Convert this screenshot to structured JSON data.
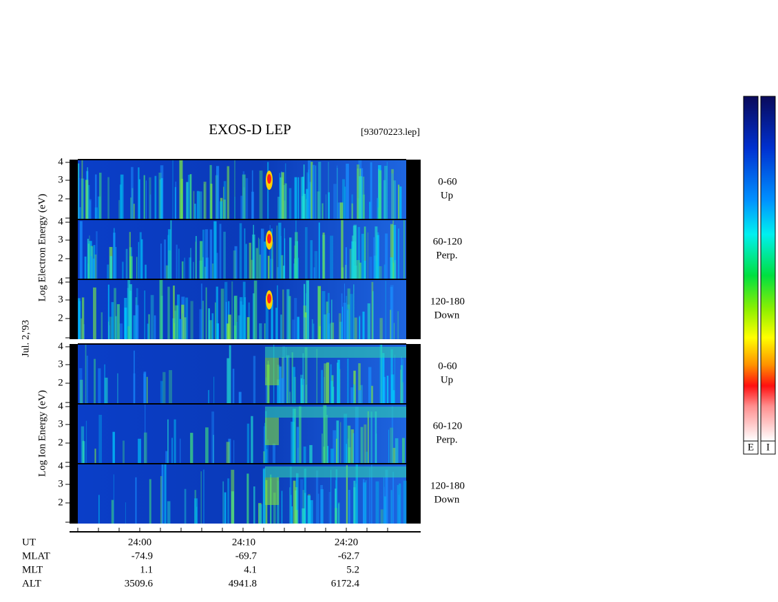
{
  "header": {
    "title": "EXOS-D LEP",
    "file": "[93070223.lep]"
  },
  "date": "Jul. 2,'93",
  "electron": {
    "y_label": "Log Electron Energy (eV)",
    "panels": [
      {
        "angle": "0-60",
        "direction": "Up",
        "ticks": [
          "4",
          "3",
          "2"
        ]
      },
      {
        "angle": "60-120",
        "direction": "Perp.",
        "ticks": [
          "4",
          "3",
          "2"
        ]
      },
      {
        "angle": "120-180",
        "direction": "Down",
        "ticks": [
          "4",
          "3",
          "2"
        ]
      }
    ]
  },
  "ion": {
    "y_label": "Log Ion Energy (eV)",
    "panels": [
      {
        "angle": "0-60",
        "direction": "Up",
        "ticks": [
          "4",
          "3",
          "2"
        ]
      },
      {
        "angle": "60-120",
        "direction": "Perp.",
        "ticks": [
          "4",
          "3",
          "2"
        ]
      },
      {
        "angle": "120-180",
        "direction": "Down",
        "ticks": [
          "4",
          "3",
          "2"
        ]
      }
    ]
  },
  "time_axis": {
    "rows": [
      {
        "label": "UT",
        "values": [
          "24:00",
          "24:10",
          "24:20"
        ]
      },
      {
        "label": "MLAT",
        "values": [
          "-74.9",
          "-69.7",
          "-62.7"
        ]
      },
      {
        "label": "MLT",
        "values": [
          "1.1",
          "4.1",
          "5.2"
        ]
      },
      {
        "label": "ALT",
        "values": [
          "3509.6",
          "4941.8",
          "6172.4"
        ]
      }
    ]
  },
  "colorbars": [
    "E",
    "I"
  ]
}
